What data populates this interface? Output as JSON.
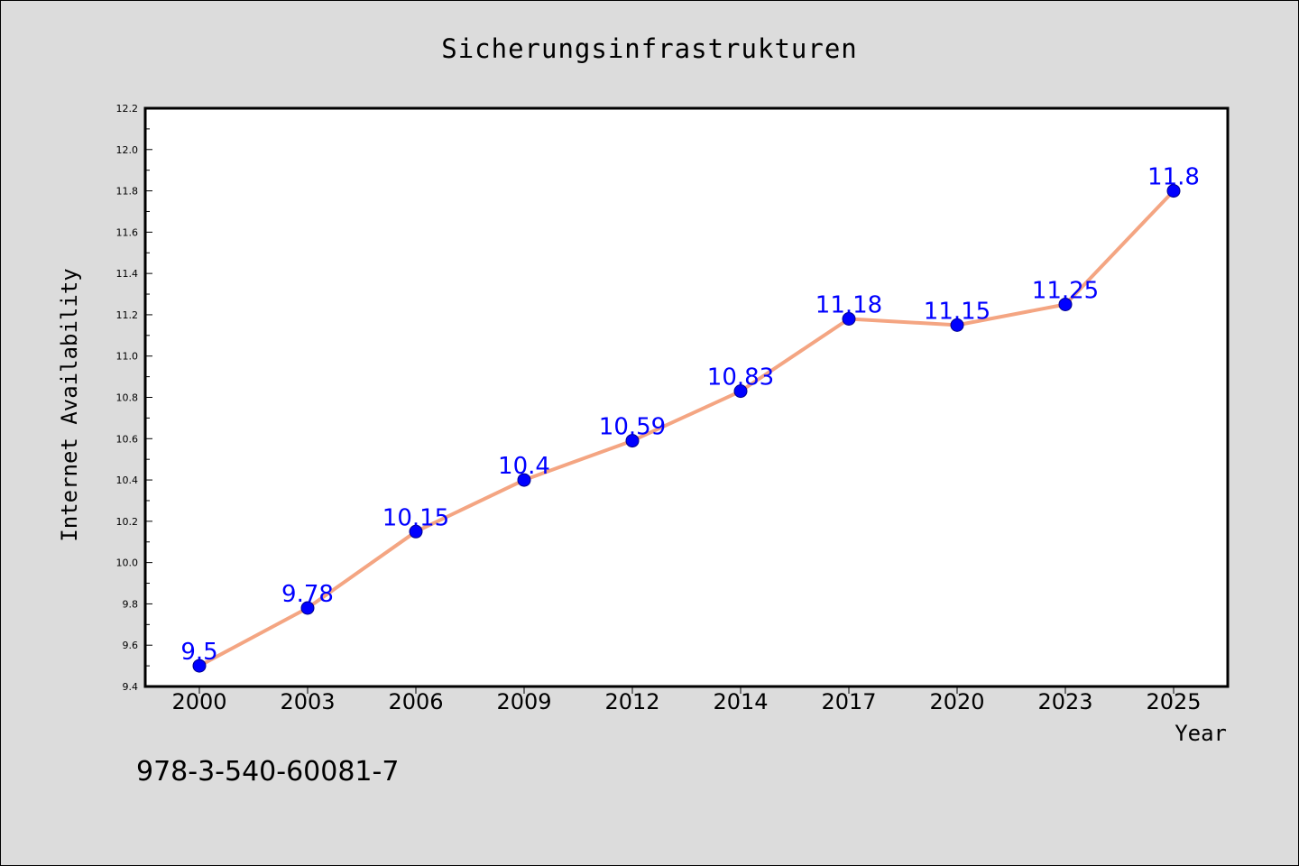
{
  "chart_data": {
    "type": "line",
    "title": "Sicherungsinfrastrukturen",
    "xlabel": "Year",
    "ylabel": "Internet Availability",
    "categories": [
      "2000",
      "2003",
      "2006",
      "2009",
      "2012",
      "2014",
      "2017",
      "2020",
      "2023",
      "2025"
    ],
    "series": [
      {
        "values": [
          9.5,
          9.78,
          10.15,
          10.4,
          10.59,
          10.83,
          11.18,
          11.15,
          11.25,
          11.8
        ],
        "data_labels": [
          "9.5",
          "9.78",
          "10.15",
          "10.4",
          "10.59",
          "10.83",
          "11.18",
          "11.15",
          "11.25",
          "11.8"
        ]
      }
    ],
    "ylim": [
      9.4,
      12.2
    ],
    "yticks": [
      "9.4",
      "9.6",
      "9.8",
      "10.0",
      "10.2",
      "10.4",
      "10.6",
      "10.8",
      "11.0",
      "11.2",
      "11.4",
      "11.6",
      "11.8",
      "12.0",
      "12.2"
    ],
    "grid": false,
    "colors": {
      "line": "#f4a582",
      "marker": "#0000ff",
      "data_label": "#0000ff",
      "background": "#dcdcdc",
      "plot_background": "#ffffff"
    }
  },
  "footer_text": "978-3-540-60081-7"
}
